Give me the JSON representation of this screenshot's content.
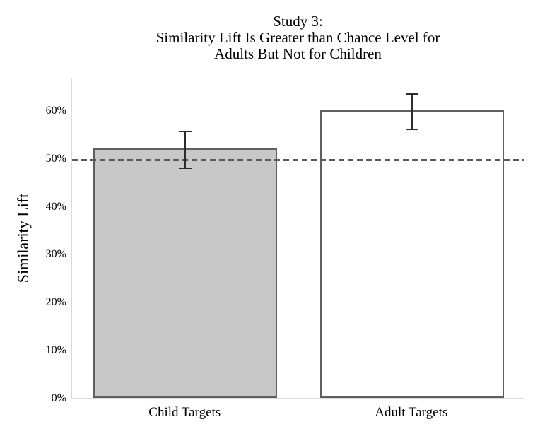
{
  "chart_data": {
    "type": "bar",
    "title_lines": [
      "Study 3:",
      "Similarity Lift Is Greater than Chance Level for",
      "Adults But Not for Children"
    ],
    "ylabel": "Similarity Lift",
    "xlabel": "",
    "categories": [
      "Child Targets",
      "Adult Targets"
    ],
    "values": [
      52,
      60
    ],
    "error_plus": [
      4,
      3.8
    ],
    "error_minus": [
      4,
      3.8
    ],
    "bar_fills": [
      "#c8c8c8",
      "#ffffff"
    ],
    "reference_line": {
      "value": 50,
      "style": "dashed"
    },
    "ylim": [
      0,
      66.9
    ],
    "yticks": [
      0,
      10,
      20,
      30,
      40,
      50,
      60
    ],
    "ytick_labels": [
      "0%",
      "10%",
      "20%",
      "30%",
      "40%",
      "50%",
      "60%"
    ],
    "grid": false,
    "legend": false
  },
  "colors": {
    "bar_border": "#5f5f5f",
    "error_bar": "#2b2b2b",
    "reference_line": "#595959",
    "plot_border": "#d9d9d9",
    "text": "#000000",
    "background": "#ffffff"
  }
}
